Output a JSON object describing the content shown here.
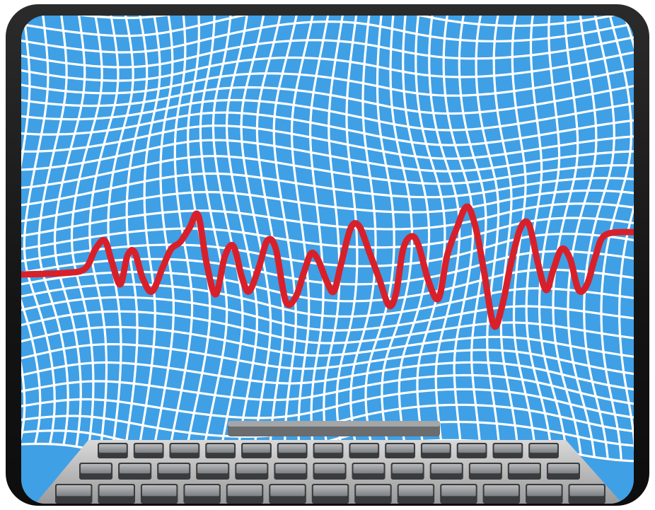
{
  "scene": {
    "subject": "illustration",
    "palette": {
      "screen_blue": "#3fa0e6",
      "grid_white": "#ffffff",
      "wave_red": "#d8202a",
      "bezel": "#1a1a1a",
      "key_top": "#9a9c9e",
      "key_side": "#3a3b3d"
    },
    "icons": [
      "waveform-icon",
      "keyboard-icon"
    ]
  }
}
